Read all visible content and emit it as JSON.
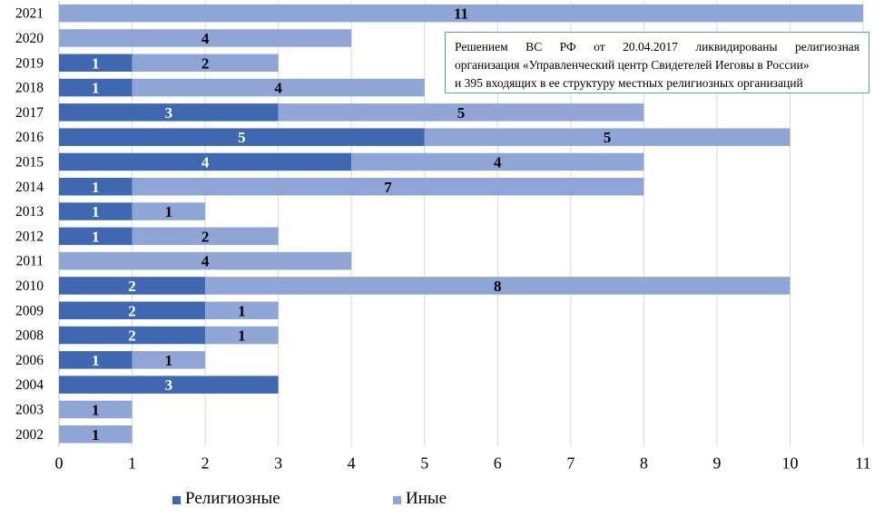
{
  "chart_data": {
    "type": "bar",
    "orientation": "horizontal",
    "stacked": true,
    "categories": [
      "2021",
      "2020",
      "2019",
      "2018",
      "2017",
      "2016",
      "2015",
      "2014",
      "2013",
      "2012",
      "2011",
      "2010",
      "2009",
      "2008",
      "2006",
      "2004",
      "2003",
      "2002"
    ],
    "series": [
      {
        "name": "Религиозные",
        "color": "#3f68b0",
        "values": [
          0,
          0,
          1,
          1,
          3,
          5,
          4,
          1,
          1,
          1,
          0,
          2,
          2,
          2,
          1,
          3,
          0,
          0
        ]
      },
      {
        "name": "Иные",
        "color": "#8fa5d6",
        "values": [
          11,
          4,
          2,
          4,
          5,
          5,
          4,
          7,
          1,
          2,
          4,
          8,
          1,
          1,
          1,
          0,
          1,
          1
        ]
      }
    ],
    "xlim": [
      0,
      11
    ],
    "xticks": [
      "0",
      "1",
      "2",
      "3",
      "4",
      "5",
      "6",
      "7",
      "8",
      "9",
      "10",
      "11"
    ],
    "grid": true,
    "legend_position": "bottom",
    "annotation": {
      "line1": "Решением ВС РФ от 20.04.2017 ликвидированы религиозная",
      "line2": "организация «Управленческий центр Свидетелей Иеговы в России»",
      "line3": "и 395 входящих в ее структуру местных религиозных организаций"
    }
  }
}
